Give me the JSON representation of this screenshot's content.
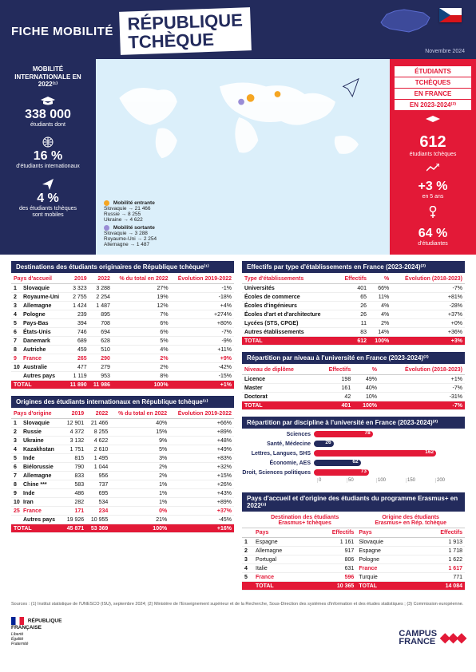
{
  "header": {
    "fiche_label": "FICHE MOBILITÉ",
    "country_l1": "RÉPUBLIQUE",
    "country_l2": "TCHÈQUE",
    "date": "Novembre 2024"
  },
  "colors": {
    "navy": "#232b5c",
    "red": "#e31937",
    "in_orange": "#f5a623",
    "out_violet": "#9a8dd6",
    "map_bg": "#dbeffa"
  },
  "left_sidebar": {
    "box_title": "MOBILITÉ INTERNATIONALE EN 2022⁽¹⁾",
    "stat1_num": "338 000",
    "stat1_sub": "étudiants dont",
    "stat2_num": "16 %",
    "stat2_sub": "d'étudiants internationaux",
    "stat3_num": "4 %",
    "stat3_sub": "des étudiants tchèques\nsont mobiles"
  },
  "map_legend": {
    "in_title": "Mobilité entrante",
    "in_lines": "Slovaquie → 21 466\nRussie → 8 255\nUkraine → 4 622",
    "out_title": "Mobilité sortante",
    "out_lines": "Slovaquie → 3 288\nRoyaume-Uni → 2 254\nAllemagne → 1 487"
  },
  "right_sidebar": {
    "l1": "ÉTUDIANTS",
    "l2": "TCHÈQUES",
    "l3": "EN FRANCE",
    "l4": "EN 2023-2024⁽²⁾",
    "n1": "612",
    "s1": "étudiants tchèques",
    "n2": "+3 %",
    "s2": "en 5 ans",
    "n3": "64 %",
    "s3": "d'étudiantes"
  },
  "dest": {
    "title": "Destinations des étudiants originaires de République tchèque⁽¹⁾",
    "cols": [
      "Pays d'accueil",
      "2019",
      "2022",
      "% du total en 2022",
      "Évolution 2019-2022"
    ],
    "rows": [
      {
        "rank": "1",
        "c": "Slovaquie",
        "y19": "3 323",
        "y22": "3 288",
        "pct": "27%",
        "evo": "-1%"
      },
      {
        "rank": "2",
        "c": "Royaume-Uni",
        "y19": "2 755",
        "y22": "2 254",
        "pct": "19%",
        "evo": "-18%"
      },
      {
        "rank": "3",
        "c": "Allemagne",
        "y19": "1 424",
        "y22": "1 487",
        "pct": "12%",
        "evo": "+4%"
      },
      {
        "rank": "4",
        "c": "Pologne",
        "y19": "239",
        "y22": "895",
        "pct": "7%",
        "evo": "+274%"
      },
      {
        "rank": "5",
        "c": "Pays-Bas",
        "y19": "394",
        "y22": "708",
        "pct": "6%",
        "evo": "+80%"
      },
      {
        "rank": "6",
        "c": "États-Unis",
        "y19": "746",
        "y22": "694",
        "pct": "6%",
        "evo": "-7%"
      },
      {
        "rank": "7",
        "c": "Danemark",
        "y19": "689",
        "y22": "628",
        "pct": "5%",
        "evo": "-9%"
      },
      {
        "rank": "8",
        "c": "Autriche",
        "y19": "459",
        "y22": "510",
        "pct": "4%",
        "evo": "+11%"
      },
      {
        "rank": "9",
        "c": "France",
        "y19": "265",
        "y22": "290",
        "pct": "2%",
        "evo": "+9%",
        "hl": true
      },
      {
        "rank": "10",
        "c": "Australie",
        "y19": "477",
        "y22": "279",
        "pct": "2%",
        "evo": "-42%"
      },
      {
        "rank": "",
        "c": "Autres pays",
        "y19": "1 119",
        "y22": "953",
        "pct": "8%",
        "evo": "-15%"
      }
    ],
    "total": {
      "c": "TOTAL",
      "y19": "11 890",
      "y22": "11 986",
      "pct": "100%",
      "evo": "+1%"
    }
  },
  "orig": {
    "title": "Origines des étudiants internationaux en République tchèque⁽¹⁾",
    "cols": [
      "Pays d'origine",
      "2019",
      "2022",
      "% du total en 2022",
      "Évolution 2019-2022"
    ],
    "rows": [
      {
        "rank": "1",
        "c": "Slovaquie",
        "y19": "12 901",
        "y22": "21 466",
        "pct": "40%",
        "evo": "+66%"
      },
      {
        "rank": "2",
        "c": "Russie",
        "y19": "4 372",
        "y22": "8 255",
        "pct": "15%",
        "evo": "+89%"
      },
      {
        "rank": "3",
        "c": "Ukraine",
        "y19": "3 132",
        "y22": "4 622",
        "pct": "9%",
        "evo": "+48%"
      },
      {
        "rank": "4",
        "c": "Kazakhstan",
        "y19": "1 751",
        "y22": "2 610",
        "pct": "5%",
        "evo": "+49%"
      },
      {
        "rank": "5",
        "c": "Inde",
        "y19": "815",
        "y22": "1 495",
        "pct": "3%",
        "evo": "+83%"
      },
      {
        "rank": "6",
        "c": "Biélorussie",
        "y19": "790",
        "y22": "1 044",
        "pct": "2%",
        "evo": "+32%"
      },
      {
        "rank": "7",
        "c": "Allemagne",
        "y19": "833",
        "y22": "956",
        "pct": "2%",
        "evo": "+15%"
      },
      {
        "rank": "8",
        "c": "Chine ***",
        "y19": "583",
        "y22": "737",
        "pct": "1%",
        "evo": "+26%"
      },
      {
        "rank": "9",
        "c": "Inde",
        "y19": "486",
        "y22": "695",
        "pct": "1%",
        "evo": "+43%"
      },
      {
        "rank": "10",
        "c": "Iran",
        "y19": "282",
        "y22": "534",
        "pct": "1%",
        "evo": "+89%"
      },
      {
        "rank": "25",
        "c": "France",
        "y19": "171",
        "y22": "234",
        "pct": "0%",
        "evo": "+37%",
        "hl": true
      },
      {
        "rank": "",
        "c": "Autres pays",
        "y19": "19 926",
        "y22": "10 955",
        "pct": "21%",
        "evo": "-45%"
      }
    ],
    "total": {
      "c": "TOTAL",
      "y19": "45 871",
      "y22": "53 369",
      "pct": "100%",
      "evo": "+16%"
    }
  },
  "etab": {
    "title": "Effectifs par type d'établissements en France (2023-2024)⁽²⁾",
    "cols": [
      "Type d'établissements",
      "Effectifs",
      "%",
      "Évolution (2018-2023)"
    ],
    "rows": [
      {
        "c": "Universités",
        "eff": "401",
        "pct": "66%",
        "evo": "-7%"
      },
      {
        "c": "Écoles de commerce",
        "eff": "65",
        "pct": "11%",
        "evo": "+81%"
      },
      {
        "c": "Écoles d'ingénieurs",
        "eff": "26",
        "pct": "4%",
        "evo": "-28%"
      },
      {
        "c": "Écoles d'art et d'architecture",
        "eff": "26",
        "pct": "4%",
        "evo": "+37%"
      },
      {
        "c": "Lycées (STS, CPGE)",
        "eff": "11",
        "pct": "2%",
        "evo": "+0%"
      },
      {
        "c": "Autres établissements",
        "eff": "83",
        "pct": "14%",
        "evo": "+36%"
      }
    ],
    "total": {
      "c": "TOTAL",
      "eff": "612",
      "pct": "100%",
      "evo": "+3%"
    }
  },
  "niveau": {
    "title": "Répartition par niveau à l'université en France (2023-2024)⁽²⁾",
    "cols": [
      "Niveau de diplôme",
      "Effectifs",
      "%",
      "Évolution (2018-2023)"
    ],
    "rows": [
      {
        "c": "Licence",
        "eff": "198",
        "pct": "49%",
        "evo": "+1%"
      },
      {
        "c": "Master",
        "eff": "161",
        "pct": "40%",
        "evo": "-7%"
      },
      {
        "c": "Doctorat",
        "eff": "42",
        "pct": "10%",
        "evo": "-31%"
      }
    ],
    "total": {
      "c": "TOTAL",
      "eff": "401",
      "pct": "100%",
      "evo": "-7%"
    }
  },
  "disc": {
    "title": "Répartition par discipline à l'université en France (2023-2024)⁽²⁾",
    "max": 200,
    "ticks": [
      "0",
      "50",
      "100",
      "150",
      "200"
    ],
    "bars": [
      {
        "label": "Sciences",
        "val": 78,
        "color": "#e31937"
      },
      {
        "label": "Santé, Médecine",
        "val": 26,
        "color": "#232b5c"
      },
      {
        "label": "Lettres, Langues, SHS",
        "val": 162,
        "color": "#e31937"
      },
      {
        "label": "Économie, AES",
        "val": 62,
        "color": "#232b5c"
      },
      {
        "label": "Droit, Sciences politiques",
        "val": 73,
        "color": "#e31937"
      }
    ]
  },
  "erasmus": {
    "title": "Pays d'accueil et d'origine des étudiants du programme Erasmus+ en 2022⁽³⁾",
    "left_head1": "Destination des étudiants",
    "left_head2": "Erasmus+ tchèques",
    "right_head1": "Origine des étudiants",
    "right_head2": "Erasmus+ en Rép. tchèque",
    "cols": [
      "Pays",
      "Effectifs",
      "Pays",
      "Effectifs"
    ],
    "rows": [
      {
        "r": "1",
        "lp": "Espagne",
        "le": "1 161",
        "rp": "Slovaquie",
        "re": "1 913"
      },
      {
        "r": "2",
        "lp": "Allemagne",
        "le": "917",
        "rp": "Espagne",
        "re": "1 718"
      },
      {
        "r": "3",
        "lp": "Portugal",
        "le": "806",
        "rp": "Pologne",
        "re": "1 622"
      },
      {
        "r": "4",
        "lp": "Italie",
        "le": "631",
        "rp": "France",
        "re": "1 617",
        "rhl": true
      },
      {
        "r": "5",
        "lp": "France",
        "le": "596",
        "rp": "Turquie",
        "re": "771",
        "lhl": true
      }
    ],
    "total": {
      "lp": "TOTAL",
      "le": "10 365",
      "rp": "TOTAL",
      "re": "14 084"
    }
  },
  "sources": "Sources : (1) Institut statistique de l'UNESCO (ISU), septembre 2024; (2) Ministère de l'Enseignement supérieur et de la Recherche, Sous-Direction des systèmes d'information et des études statistiques ; (3) Commission européenne.",
  "footer": {
    "rf": "RÉPUBLIQUE\nFRANÇAISE",
    "rf_sub": "Liberté\nÉgalité\nFraternité",
    "campus": "CAMPUS\nFRANCE"
  }
}
